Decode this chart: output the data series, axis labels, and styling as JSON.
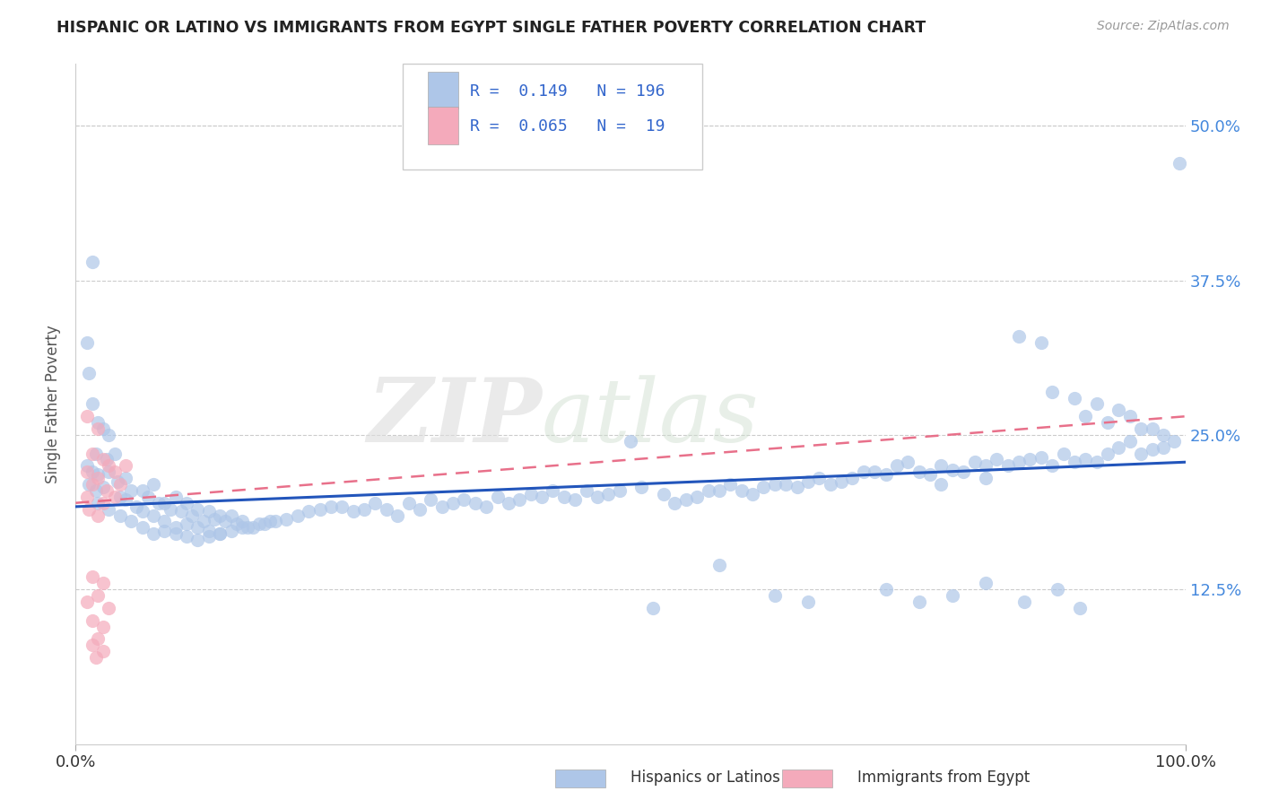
{
  "title": "HISPANIC OR LATINO VS IMMIGRANTS FROM EGYPT SINGLE FATHER POVERTY CORRELATION CHART",
  "source": "Source: ZipAtlas.com",
  "ylabel": "Single Father Poverty",
  "xlim": [
    0,
    100
  ],
  "ylim": [
    0,
    55
  ],
  "x_ticks": [
    0,
    100
  ],
  "x_tick_labels": [
    "0.0%",
    "100.0%"
  ],
  "y_tick_labels": [
    "12.5%",
    "25.0%",
    "37.5%",
    "50.0%"
  ],
  "y_ticks": [
    12.5,
    25.0,
    37.5,
    50.0
  ],
  "r_blue": "0.149",
  "n_blue": "196",
  "r_pink": "0.065",
  "n_pink": " 19",
  "blue_color": "#AEC6E8",
  "pink_color": "#F4AABB",
  "blue_line_color": "#2255BB",
  "pink_line_color": "#E8708A",
  "watermark_zip": "ZIP",
  "watermark_atlas": "atlas",
  "legend_label_blue": "Hispanics or Latinos",
  "legend_label_pink": "Immigrants from Egypt",
  "blue_scatter": [
    [
      1.5,
      39.0
    ],
    [
      1.0,
      32.5
    ],
    [
      1.2,
      30.0
    ],
    [
      1.5,
      27.5
    ],
    [
      2.0,
      26.0
    ],
    [
      2.5,
      25.5
    ],
    [
      3.0,
      25.0
    ],
    [
      1.8,
      23.5
    ],
    [
      2.8,
      23.0
    ],
    [
      3.5,
      23.5
    ],
    [
      1.0,
      22.5
    ],
    [
      1.5,
      22.0
    ],
    [
      2.0,
      21.8
    ],
    [
      3.0,
      22.0
    ],
    [
      4.5,
      21.5
    ],
    [
      1.2,
      21.0
    ],
    [
      2.5,
      20.8
    ],
    [
      3.8,
      21.2
    ],
    [
      5.0,
      20.5
    ],
    [
      1.8,
      20.5
    ],
    [
      4.0,
      20.0
    ],
    [
      6.0,
      20.5
    ],
    [
      7.0,
      21.0
    ],
    [
      2.0,
      19.5
    ],
    [
      4.5,
      19.8
    ],
    [
      6.5,
      20.0
    ],
    [
      8.0,
      19.5
    ],
    [
      3.0,
      19.0
    ],
    [
      5.5,
      19.2
    ],
    [
      7.5,
      19.5
    ],
    [
      9.0,
      20.0
    ],
    [
      4.0,
      18.5
    ],
    [
      6.0,
      18.8
    ],
    [
      8.5,
      19.0
    ],
    [
      10.0,
      19.5
    ],
    [
      5.0,
      18.0
    ],
    [
      7.0,
      18.5
    ],
    [
      9.5,
      18.8
    ],
    [
      11.0,
      19.0
    ],
    [
      6.0,
      17.5
    ],
    [
      8.0,
      18.0
    ],
    [
      10.5,
      18.5
    ],
    [
      12.0,
      18.8
    ],
    [
      7.0,
      17.0
    ],
    [
      9.0,
      17.5
    ],
    [
      11.5,
      18.0
    ],
    [
      13.0,
      18.5
    ],
    [
      8.0,
      17.2
    ],
    [
      10.0,
      17.8
    ],
    [
      12.5,
      18.2
    ],
    [
      14.0,
      18.5
    ],
    [
      9.0,
      17.0
    ],
    [
      11.0,
      17.5
    ],
    [
      13.5,
      18.0
    ],
    [
      15.0,
      18.0
    ],
    [
      10.0,
      16.8
    ],
    [
      12.0,
      17.2
    ],
    [
      14.5,
      17.8
    ],
    [
      16.0,
      17.5
    ],
    [
      11.0,
      16.5
    ],
    [
      13.0,
      17.0
    ],
    [
      15.5,
      17.5
    ],
    [
      17.0,
      17.8
    ],
    [
      12.0,
      16.8
    ],
    [
      14.0,
      17.2
    ],
    [
      16.5,
      17.8
    ],
    [
      18.0,
      18.0
    ],
    [
      13.0,
      17.0
    ],
    [
      15.0,
      17.5
    ],
    [
      17.5,
      18.0
    ],
    [
      19.0,
      18.2
    ],
    [
      20.0,
      18.5
    ],
    [
      22.0,
      19.0
    ],
    [
      24.0,
      19.2
    ],
    [
      26.0,
      19.0
    ],
    [
      21.0,
      18.8
    ],
    [
      23.0,
      19.2
    ],
    [
      25.0,
      18.8
    ],
    [
      27.0,
      19.5
    ],
    [
      28.0,
      19.0
    ],
    [
      30.0,
      19.5
    ],
    [
      32.0,
      19.8
    ],
    [
      34.0,
      19.5
    ],
    [
      29.0,
      18.5
    ],
    [
      31.0,
      19.0
    ],
    [
      33.0,
      19.2
    ],
    [
      35.0,
      19.8
    ],
    [
      36.0,
      19.5
    ],
    [
      38.0,
      20.0
    ],
    [
      40.0,
      19.8
    ],
    [
      42.0,
      20.0
    ],
    [
      37.0,
      19.2
    ],
    [
      39.0,
      19.5
    ],
    [
      41.0,
      20.2
    ],
    [
      43.0,
      20.5
    ],
    [
      44.0,
      20.0
    ],
    [
      46.0,
      20.5
    ],
    [
      48.0,
      20.2
    ],
    [
      50.0,
      24.5
    ],
    [
      45.0,
      19.8
    ],
    [
      47.0,
      20.0
    ],
    [
      49.0,
      20.5
    ],
    [
      51.0,
      20.8
    ],
    [
      52.0,
      11.0
    ],
    [
      54.0,
      19.5
    ],
    [
      56.0,
      20.0
    ],
    [
      58.0,
      20.5
    ],
    [
      53.0,
      20.2
    ],
    [
      55.0,
      19.8
    ],
    [
      57.0,
      20.5
    ],
    [
      59.0,
      21.0
    ],
    [
      60.0,
      20.5
    ],
    [
      62.0,
      20.8
    ],
    [
      64.0,
      21.0
    ],
    [
      66.0,
      21.2
    ],
    [
      61.0,
      20.2
    ],
    [
      63.0,
      21.0
    ],
    [
      65.0,
      20.8
    ],
    [
      67.0,
      21.5
    ],
    [
      68.0,
      21.0
    ],
    [
      70.0,
      21.5
    ],
    [
      72.0,
      22.0
    ],
    [
      74.0,
      22.5
    ],
    [
      69.0,
      21.2
    ],
    [
      71.0,
      22.0
    ],
    [
      73.0,
      21.8
    ],
    [
      75.0,
      22.8
    ],
    [
      76.0,
      22.0
    ],
    [
      78.0,
      22.5
    ],
    [
      80.0,
      22.0
    ],
    [
      82.0,
      22.5
    ],
    [
      77.0,
      21.8
    ],
    [
      79.0,
      22.2
    ],
    [
      81.0,
      22.8
    ],
    [
      83.0,
      23.0
    ],
    [
      84.0,
      22.5
    ],
    [
      86.0,
      23.0
    ],
    [
      88.0,
      22.5
    ],
    [
      90.0,
      22.8
    ],
    [
      85.0,
      22.8
    ],
    [
      87.0,
      23.2
    ],
    [
      89.0,
      23.5
    ],
    [
      91.0,
      23.0
    ],
    [
      92.0,
      22.8
    ],
    [
      94.0,
      24.0
    ],
    [
      96.0,
      23.5
    ],
    [
      98.0,
      24.0
    ],
    [
      93.0,
      23.5
    ],
    [
      95.0,
      24.5
    ],
    [
      97.0,
      23.8
    ],
    [
      85.0,
      33.0
    ],
    [
      87.0,
      32.5
    ],
    [
      88.0,
      28.5
    ],
    [
      90.0,
      28.0
    ],
    [
      92.0,
      27.5
    ],
    [
      94.0,
      27.0
    ],
    [
      91.0,
      26.5
    ],
    [
      93.0,
      26.0
    ],
    [
      95.0,
      26.5
    ],
    [
      96.0,
      25.5
    ],
    [
      97.0,
      25.5
    ],
    [
      98.0,
      25.0
    ],
    [
      99.0,
      24.5
    ],
    [
      78.0,
      21.0
    ],
    [
      82.0,
      21.5
    ],
    [
      99.5,
      47.0
    ],
    [
      58.0,
      14.5
    ],
    [
      63.0,
      12.0
    ],
    [
      66.0,
      11.5
    ],
    [
      73.0,
      12.5
    ],
    [
      76.0,
      11.5
    ],
    [
      79.0,
      12.0
    ],
    [
      82.0,
      13.0
    ],
    [
      85.5,
      11.5
    ],
    [
      88.5,
      12.5
    ],
    [
      90.5,
      11.0
    ]
  ],
  "pink_scatter": [
    [
      1.0,
      26.5
    ],
    [
      2.0,
      25.5
    ],
    [
      1.5,
      23.5
    ],
    [
      2.5,
      23.0
    ],
    [
      3.0,
      22.5
    ],
    [
      1.0,
      22.0
    ],
    [
      2.0,
      21.5
    ],
    [
      3.5,
      22.0
    ],
    [
      4.5,
      22.5
    ],
    [
      1.5,
      21.0
    ],
    [
      2.8,
      20.5
    ],
    [
      4.0,
      21.0
    ],
    [
      1.0,
      20.0
    ],
    [
      2.5,
      19.5
    ],
    [
      3.5,
      20.0
    ],
    [
      1.2,
      19.0
    ],
    [
      2.0,
      18.5
    ],
    [
      1.5,
      13.5
    ],
    [
      2.5,
      13.0
    ],
    [
      1.0,
      11.5
    ],
    [
      2.0,
      12.0
    ],
    [
      3.0,
      11.0
    ],
    [
      1.5,
      10.0
    ],
    [
      2.5,
      9.5
    ],
    [
      1.5,
      8.0
    ],
    [
      2.0,
      8.5
    ],
    [
      1.8,
      7.0
    ],
    [
      2.5,
      7.5
    ]
  ],
  "blue_trendline_x": [
    0,
    100
  ],
  "blue_trendline_y": [
    19.2,
    22.8
  ],
  "pink_trendline_x": [
    0,
    100
  ],
  "pink_trendline_y": [
    19.5,
    26.5
  ]
}
